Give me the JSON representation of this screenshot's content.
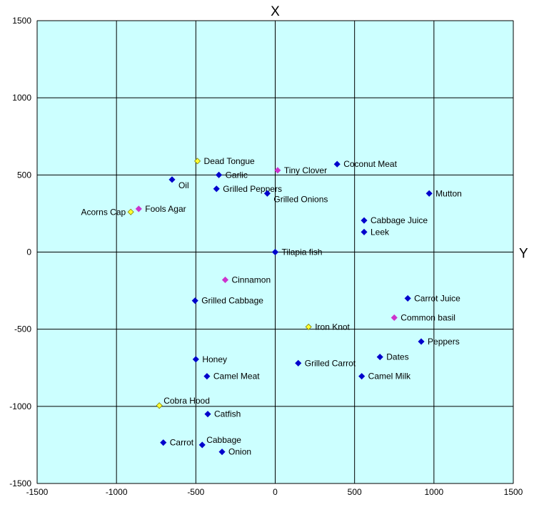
{
  "chart_data": {
    "type": "scatter",
    "title": "",
    "xlabel": "Y",
    "ylabel": "X",
    "xlim": [
      -1500,
      1500
    ],
    "ylim": [
      -1500,
      1500
    ],
    "xticks": [
      -1500,
      -1000,
      -500,
      0,
      500,
      1000,
      1500
    ],
    "yticks": [
      -1500,
      -1000,
      -500,
      0,
      500,
      1000,
      1500
    ],
    "grid": true,
    "legend": "none",
    "colors": {
      "plot_bg": "#ccffff",
      "grid": "#000000",
      "blue": "#0000cc",
      "magenta": "#cc33cc",
      "yellow": "#ffff33"
    },
    "points": [
      {
        "label": "Dead Tongue",
        "x": -490,
        "y": 590,
        "color": "yellow",
        "label_side": "right"
      },
      {
        "label": "Tiny Clover",
        "x": 15,
        "y": 530,
        "color": "magenta",
        "label_side": "right"
      },
      {
        "label": "Coconut Meat",
        "x": 390,
        "y": 570,
        "color": "blue",
        "label_side": "right"
      },
      {
        "label": "Garlic",
        "x": -355,
        "y": 500,
        "color": "blue",
        "label_side": "right"
      },
      {
        "label": "Oil",
        "x": -650,
        "y": 470,
        "color": "blue",
        "label_side": "right-below"
      },
      {
        "label": "Grilled Peppers",
        "x": -370,
        "y": 410,
        "color": "blue",
        "label_side": "right"
      },
      {
        "label": "Grilled Onions",
        "x": -50,
        "y": 380,
        "color": "blue",
        "label_side": "right-below"
      },
      {
        "label": "Mutton",
        "x": 970,
        "y": 380,
        "color": "blue",
        "label_side": "right"
      },
      {
        "label": "Fools Agar",
        "x": -860,
        "y": 280,
        "color": "magenta",
        "label_side": "right"
      },
      {
        "label": "Acorns Cap",
        "x": -910,
        "y": 260,
        "color": "yellow",
        "label_side": "left"
      },
      {
        "label": "Cabbage Juice",
        "x": 560,
        "y": 205,
        "color": "blue",
        "label_side": "right"
      },
      {
        "label": "Leek",
        "x": 560,
        "y": 130,
        "color": "blue",
        "label_side": "right"
      },
      {
        "label": "Tilapia fish",
        "x": 0,
        "y": 0,
        "color": "blue",
        "label_side": "right"
      },
      {
        "label": "Cinnamon",
        "x": -315,
        "y": -180,
        "color": "magenta",
        "label_side": "right"
      },
      {
        "label": "Carrot Juice",
        "x": 835,
        "y": -300,
        "color": "blue",
        "label_side": "right"
      },
      {
        "label": "Grilled Cabbage",
        "x": -505,
        "y": -315,
        "color": "blue",
        "label_side": "right"
      },
      {
        "label": "Common basil",
        "x": 750,
        "y": -425,
        "color": "magenta",
        "label_side": "right"
      },
      {
        "label": "Iron Knot",
        "x": 210,
        "y": -485,
        "color": "yellow",
        "label_side": "right"
      },
      {
        "label": "Peppers",
        "x": 920,
        "y": -580,
        "color": "blue",
        "label_side": "right"
      },
      {
        "label": "Dates",
        "x": 660,
        "y": -680,
        "color": "blue",
        "label_side": "right"
      },
      {
        "label": "Honey",
        "x": -500,
        "y": -695,
        "color": "blue",
        "label_side": "right"
      },
      {
        "label": "Grilled Carrot",
        "x": 145,
        "y": -720,
        "color": "blue",
        "label_side": "right"
      },
      {
        "label": "Camel Meat",
        "x": -430,
        "y": -805,
        "color": "blue",
        "label_side": "right"
      },
      {
        "label": "Camel Milk",
        "x": 545,
        "y": -805,
        "color": "blue",
        "label_side": "right"
      },
      {
        "label": "Cobra Hood",
        "x": -730,
        "y": -995,
        "color": "yellow",
        "label_side": "right-above"
      },
      {
        "label": "Catfish",
        "x": -425,
        "y": -1050,
        "color": "blue",
        "label_side": "right"
      },
      {
        "label": "Carrot",
        "x": -705,
        "y": -1235,
        "color": "blue",
        "label_side": "right"
      },
      {
        "label": "Cabbage",
        "x": -460,
        "y": -1250,
        "color": "blue",
        "label_side": "right-above"
      },
      {
        "label": "Onion",
        "x": -335,
        "y": -1295,
        "color": "blue",
        "label_side": "right"
      }
    ]
  }
}
